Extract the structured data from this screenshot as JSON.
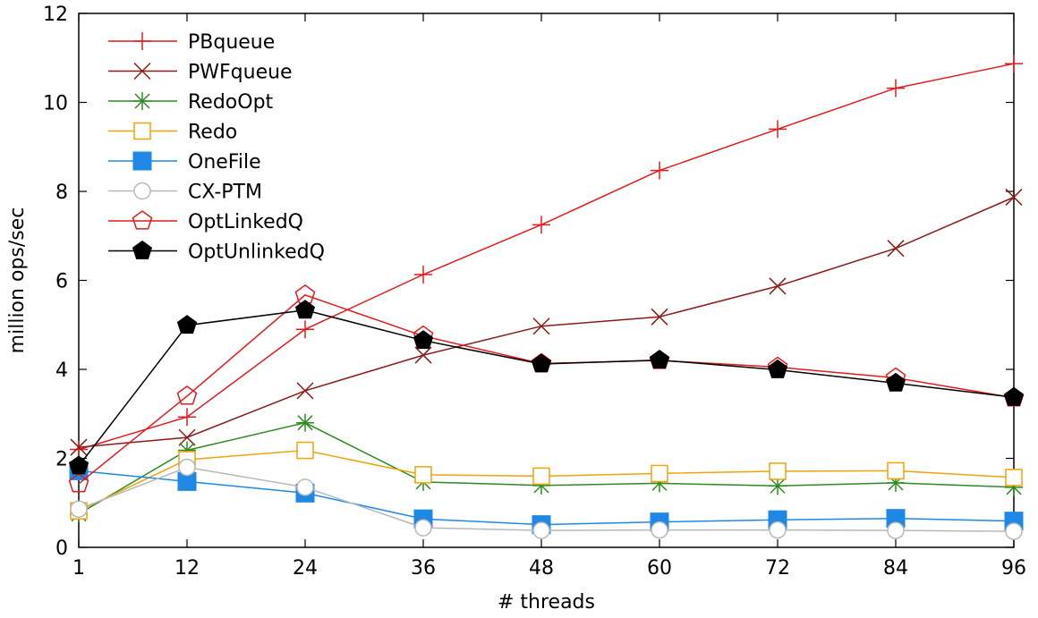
{
  "chart_data": {
    "type": "line",
    "xlabel": "# threads",
    "ylabel": "million ops/sec",
    "x": [
      1,
      12,
      24,
      36,
      48,
      60,
      72,
      84,
      96
    ],
    "xticks": [
      "1",
      "12",
      "24",
      "36",
      "48",
      "60",
      "72",
      "84",
      "96"
    ],
    "yticks": [
      "0",
      "2",
      "4",
      "6",
      "8",
      "10",
      "12"
    ],
    "xlim": [
      1,
      96
    ],
    "ylim": [
      0,
      12
    ],
    "grid": false,
    "legend_position": "top-left",
    "series": [
      {
        "name": "PBqueue",
        "color": "#e41a1c",
        "marker": "plus",
        "values": [
          2.2,
          2.93,
          4.9,
          6.13,
          7.25,
          8.47,
          9.4,
          10.32,
          10.87
        ]
      },
      {
        "name": "PWFqueue",
        "color": "#8b1a1a",
        "marker": "cross",
        "values": [
          2.25,
          2.47,
          3.52,
          4.32,
          4.97,
          5.18,
          5.87,
          6.72,
          7.87
        ]
      },
      {
        "name": "RedoOpt",
        "color": "#2e8b22",
        "marker": "star",
        "values": [
          0.75,
          2.18,
          2.8,
          1.47,
          1.39,
          1.44,
          1.38,
          1.45,
          1.35
        ]
      },
      {
        "name": "Redo",
        "color": "#f0a30a",
        "marker": "square-open",
        "values": [
          0.82,
          1.97,
          2.18,
          1.63,
          1.6,
          1.66,
          1.71,
          1.72,
          1.57
        ]
      },
      {
        "name": "OneFile",
        "color": "#1f88e5",
        "marker": "square-filled",
        "values": [
          1.72,
          1.48,
          1.22,
          0.64,
          0.51,
          0.57,
          0.62,
          0.65,
          0.59
        ]
      },
      {
        "name": "CX-PTM",
        "color": "#b8b8b8",
        "marker": "circle-open",
        "values": [
          0.86,
          1.8,
          1.35,
          0.44,
          0.38,
          0.39,
          0.39,
          0.38,
          0.36
        ]
      },
      {
        "name": "OptLinkedQ",
        "color": "#e41a1c",
        "marker": "pentagon-open",
        "values": [
          1.43,
          3.4,
          5.67,
          4.75,
          4.13,
          4.2,
          4.05,
          3.81,
          3.36
        ]
      },
      {
        "name": "OptUnlinkedQ",
        "color": "#000000",
        "marker": "pentagon-filled",
        "values": [
          1.83,
          4.99,
          5.33,
          4.65,
          4.12,
          4.21,
          3.99,
          3.69,
          3.37
        ]
      }
    ]
  }
}
